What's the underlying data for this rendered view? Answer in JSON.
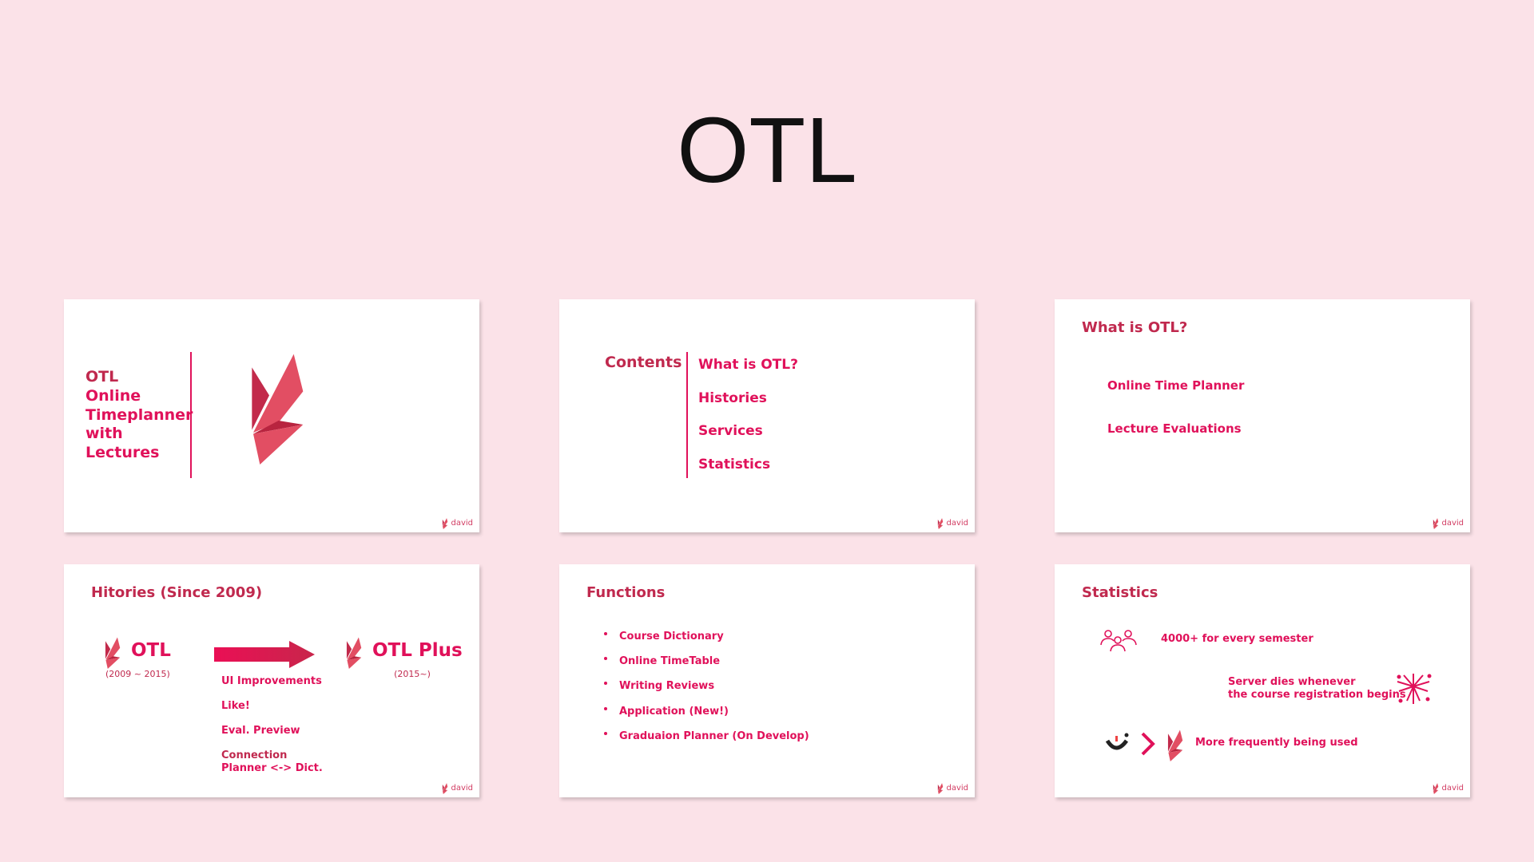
{
  "page_title": "OTL",
  "colors": {
    "background": "#fbe2e8",
    "accent": "#e0115a",
    "heading": "#c0294e",
    "logo_dark": "#c22a4b",
    "logo_light": "#e24e63"
  },
  "footer_label": "david",
  "slides": {
    "cover": {
      "lines": [
        "OTL",
        "Online",
        "Timeplanner",
        "with",
        "Lectures"
      ]
    },
    "contents": {
      "title": "Contents",
      "items": [
        "What is OTL?",
        "Histories",
        "Services",
        "Statistics"
      ]
    },
    "what_is": {
      "title": "What is OTL?",
      "items": [
        "Online Time Planner",
        "Lecture Evaluations"
      ]
    },
    "histories": {
      "title": "Hitories (Since 2009)",
      "old": {
        "name": "OTL",
        "period": "(2009 ~ 2015)"
      },
      "new": {
        "name": "OTL Plus",
        "period": "(2015~)"
      },
      "changes": [
        "UI Improvements",
        "Like!",
        "Eval. Preview",
        "Connection",
        "Planner <-> Dict."
      ]
    },
    "functions": {
      "title": "Functions",
      "items": [
        "Course Dictionary",
        "Online TimeTable",
        "Writing Reviews",
        "Application (New!)",
        "Graduaion Planner (On Develop)"
      ]
    },
    "statistics": {
      "title": "Statistics",
      "users": "4000+ for every semester",
      "server_line1": "Server dies whenever",
      "server_line2": "the course registration begins",
      "usage": "More frequently being used"
    }
  }
}
